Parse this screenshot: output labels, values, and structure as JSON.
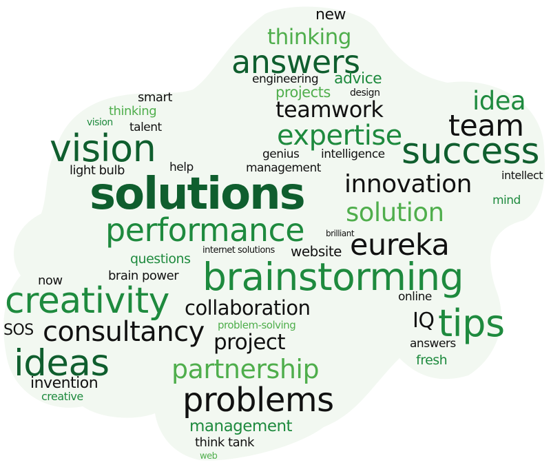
{
  "colors": {
    "black": "#111111",
    "dark_green": "#0f5e2e",
    "green": "#1e8a3e",
    "light_green": "#4fae4c",
    "cloud_fill": "#f2f8f1"
  },
  "words": [
    {
      "text": "new",
      "color": "black"
    },
    {
      "text": "thinking",
      "color": "light_green"
    },
    {
      "text": "answers",
      "color": "dark_green"
    },
    {
      "text": "engineering",
      "color": "black"
    },
    {
      "text": "advice",
      "color": "green"
    },
    {
      "text": "projects",
      "color": "light_green"
    },
    {
      "text": "design",
      "color": "black"
    },
    {
      "text": "smart",
      "color": "black"
    },
    {
      "text": "thinking",
      "color": "light_green"
    },
    {
      "text": "vision",
      "color": "green"
    },
    {
      "text": "talent",
      "color": "black"
    },
    {
      "text": "teamwork",
      "color": "black"
    },
    {
      "text": "idea",
      "color": "green"
    },
    {
      "text": "team",
      "color": "black"
    },
    {
      "text": "expertise",
      "color": "green"
    },
    {
      "text": "vision",
      "color": "dark_green"
    },
    {
      "text": "success",
      "color": "dark_green"
    },
    {
      "text": "genius",
      "color": "black"
    },
    {
      "text": "intelligence",
      "color": "black"
    },
    {
      "text": "light bulb",
      "color": "black"
    },
    {
      "text": "help",
      "color": "black"
    },
    {
      "text": "management",
      "color": "black"
    },
    {
      "text": "intellect",
      "color": "black"
    },
    {
      "text": "solutions",
      "color": "dark_green"
    },
    {
      "text": "innovation",
      "color": "black"
    },
    {
      "text": "mind",
      "color": "green"
    },
    {
      "text": "solution",
      "color": "light_green"
    },
    {
      "text": "performance",
      "color": "green"
    },
    {
      "text": "brilliant",
      "color": "black"
    },
    {
      "text": "eureka",
      "color": "black"
    },
    {
      "text": "internet solutions",
      "color": "black"
    },
    {
      "text": "website",
      "color": "black"
    },
    {
      "text": "questions",
      "color": "green"
    },
    {
      "text": "brainstorming",
      "color": "green"
    },
    {
      "text": "now",
      "color": "black"
    },
    {
      "text": "brain power",
      "color": "black"
    },
    {
      "text": "creativity",
      "color": "green"
    },
    {
      "text": "online",
      "color": "black"
    },
    {
      "text": "collaboration",
      "color": "black"
    },
    {
      "text": "IQ",
      "color": "black"
    },
    {
      "text": "tips",
      "color": "green"
    },
    {
      "text": "SOS",
      "color": "black"
    },
    {
      "text": "consultancy",
      "color": "black"
    },
    {
      "text": "problem-solving",
      "color": "light_green"
    },
    {
      "text": "project",
      "color": "black"
    },
    {
      "text": "answers",
      "color": "black"
    },
    {
      "text": "ideas",
      "color": "dark_green"
    },
    {
      "text": "fresh",
      "color": "green"
    },
    {
      "text": "partnership",
      "color": "light_green"
    },
    {
      "text": "invention",
      "color": "black"
    },
    {
      "text": "creative",
      "color": "green"
    },
    {
      "text": "problems",
      "color": "black"
    },
    {
      "text": "management",
      "color": "green"
    },
    {
      "text": "think tank",
      "color": "black"
    },
    {
      "text": "web",
      "color": "light_green"
    }
  ]
}
